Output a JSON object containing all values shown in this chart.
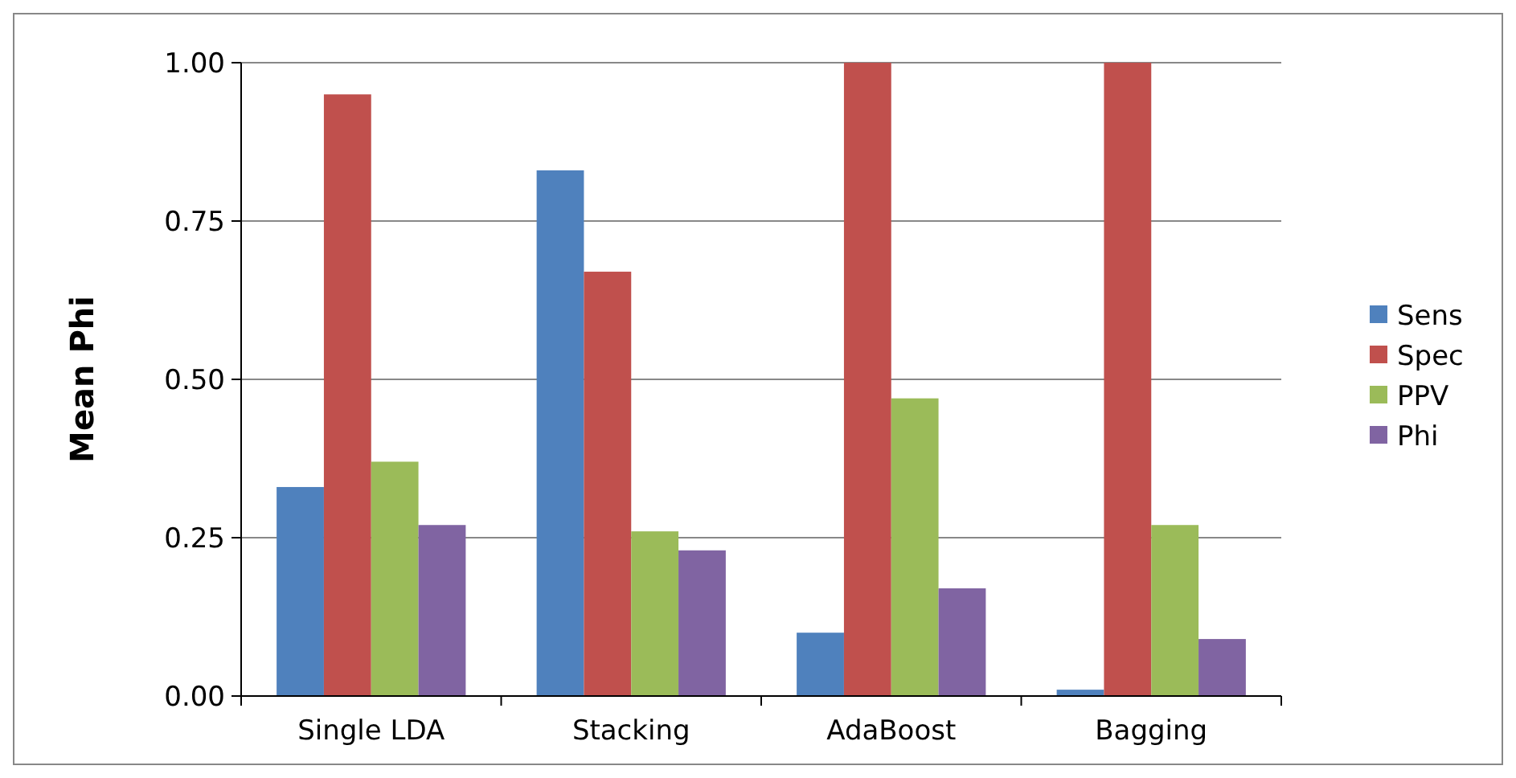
{
  "chart_data": {
    "type": "bar",
    "ylabel": "Mean Phi",
    "categories": [
      "Single LDA",
      "Stacking",
      "AdaBoost",
      "Bagging"
    ],
    "series": [
      {
        "name": "Sens",
        "color": "#4f81bd",
        "values": [
          0.33,
          0.83,
          0.1,
          0.01
        ]
      },
      {
        "name": "Spec",
        "color": "#c0504d",
        "values": [
          0.95,
          0.67,
          1.0,
          1.0
        ]
      },
      {
        "name": "PPV",
        "color": "#9bbb59",
        "values": [
          0.37,
          0.26,
          0.47,
          0.27
        ]
      },
      {
        "name": "Phi",
        "color": "#8064a2",
        "values": [
          0.27,
          0.23,
          0.17,
          0.09
        ]
      }
    ],
    "ylim": [
      0,
      1
    ],
    "yticks": [
      {
        "value": 0,
        "label": "0.00"
      },
      {
        "value": 0.25,
        "label": "0.25"
      },
      {
        "value": 0.5,
        "label": "0.50"
      },
      {
        "value": 0.75,
        "label": "0.75"
      },
      {
        "value": 1,
        "label": "1.00"
      }
    ],
    "grid": "y",
    "legend": "right"
  }
}
